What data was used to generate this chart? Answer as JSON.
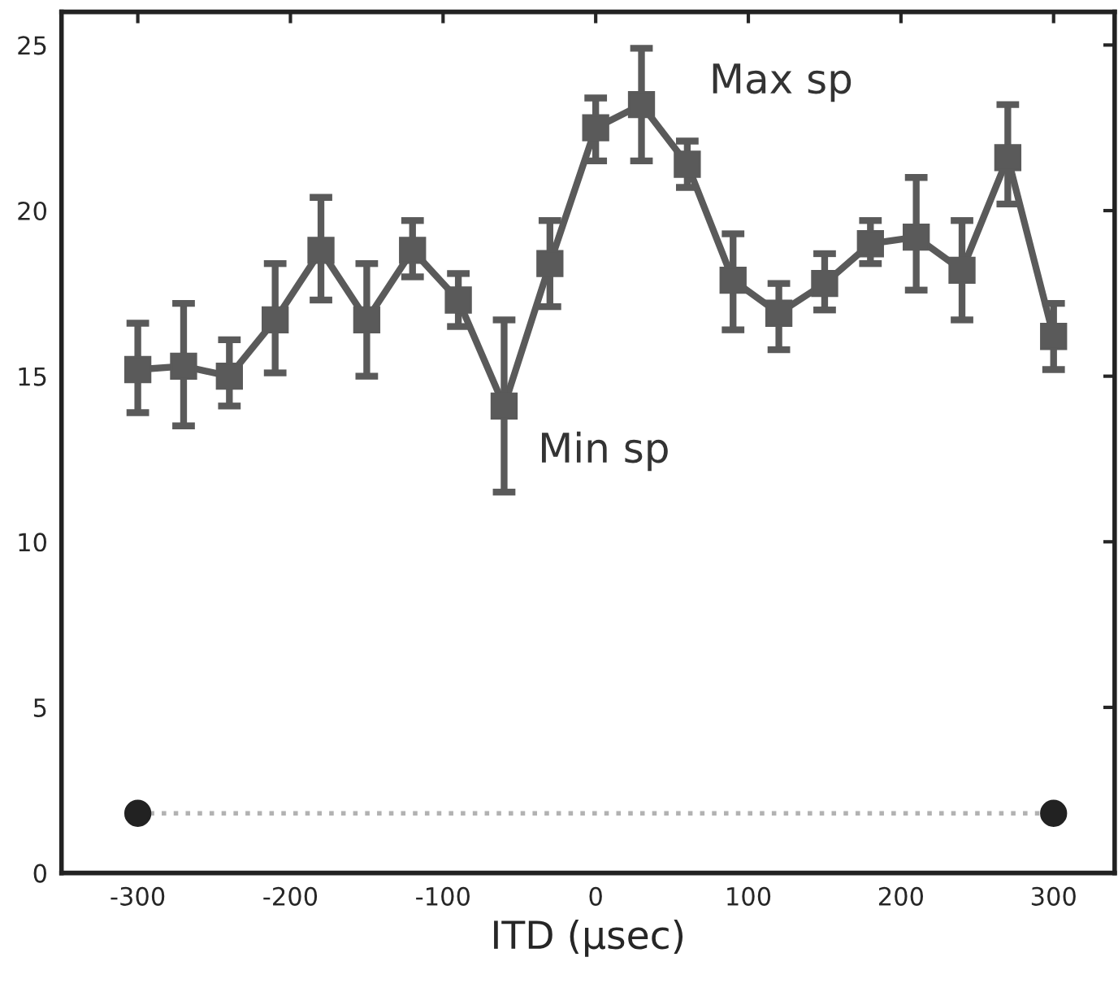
{
  "chart_data": {
    "type": "line",
    "xlabel": "ITD (μsec)",
    "xlim": [
      -350,
      340
    ],
    "ylim": [
      0,
      26
    ],
    "xticks": [
      -300,
      -200,
      -100,
      0,
      100,
      200,
      300
    ],
    "yticks": [
      0,
      5,
      10,
      15,
      20,
      25
    ],
    "grid": false,
    "series": [
      {
        "color": "#5a5a5a",
        "marker": "square",
        "line_style": "solid",
        "x": [
          -300,
          -270,
          -240,
          -210,
          -180,
          -150,
          -120,
          -90,
          -60,
          -30,
          0,
          30,
          60,
          90,
          120,
          150,
          180,
          210,
          240,
          270,
          300
        ],
        "values": [
          15.2,
          15.3,
          15.0,
          16.7,
          18.8,
          16.7,
          18.8,
          17.3,
          14.1,
          18.4,
          22.5,
          23.2,
          21.4,
          17.9,
          16.9,
          17.8,
          19.0,
          19.2,
          18.2,
          21.6,
          16.2
        ],
        "errors": [
          [
            13.9,
            16.6
          ],
          [
            13.5,
            17.2
          ],
          [
            14.1,
            16.1
          ],
          [
            15.1,
            18.4
          ],
          [
            17.3,
            20.4
          ],
          [
            15.0,
            18.4
          ],
          [
            18.0,
            19.7
          ],
          [
            16.5,
            18.1
          ],
          [
            11.5,
            16.7
          ],
          [
            17.1,
            19.7
          ],
          [
            21.5,
            23.4
          ],
          [
            21.5,
            24.9
          ],
          [
            20.7,
            22.1
          ],
          [
            16.4,
            19.3
          ],
          [
            15.8,
            17.8
          ],
          [
            17.0,
            18.7
          ],
          [
            18.4,
            19.7
          ],
          [
            17.6,
            21.0
          ],
          [
            16.7,
            19.7
          ],
          [
            20.2,
            23.2
          ],
          [
            15.2,
            17.2
          ]
        ]
      },
      {
        "color": "#222222",
        "marker": "circle",
        "line_style": "dotted",
        "x": [
          -300,
          300
        ],
        "values": [
          1.8,
          1.8
        ]
      }
    ],
    "annotations": [
      {
        "text": "Max sp",
        "x": 30,
        "y": 23.2
      },
      {
        "text": "Min sp",
        "x": -60,
        "y": 14.1
      }
    ]
  }
}
